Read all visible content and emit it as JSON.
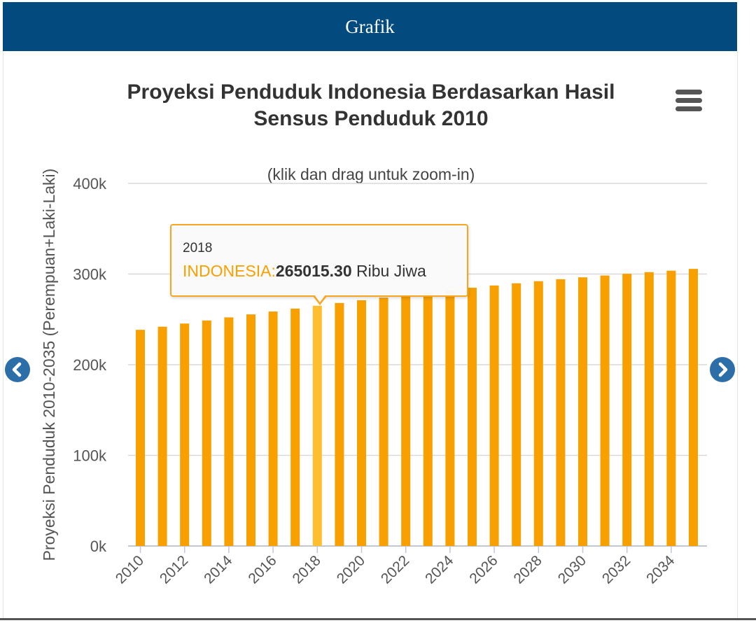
{
  "panel": {
    "header_title": "Grafik"
  },
  "chart_data": {
    "type": "bar",
    "title": "Proyeksi Penduduk Indonesia Berdasarkan Hasil Sensus Penduduk 2010",
    "subtitle": "(klik dan drag untuk zoom-in)",
    "ylabel": "Proyeksi Penduduk 2010-2035 (Perempuan+Laki-Laki)",
    "xlabel": "",
    "ylim": [
      0,
      400000
    ],
    "yticks": [
      0,
      100000,
      200000,
      300000,
      400000
    ],
    "ytick_labels": [
      "0k",
      "100k",
      "200k",
      "300k",
      "400k"
    ],
    "xtick_labels": [
      "2010",
      "2012",
      "2014",
      "2016",
      "2018",
      "2020",
      "2022",
      "2024",
      "2026",
      "2028",
      "2030",
      "2032",
      "2034"
    ],
    "grid": true,
    "categories": [
      2010,
      2011,
      2012,
      2013,
      2014,
      2015,
      2016,
      2017,
      2018,
      2019,
      2020,
      2021,
      2022,
      2023,
      2024,
      2025,
      2026,
      2027,
      2028,
      2029,
      2030,
      2031,
      2032,
      2033,
      2034,
      2035
    ],
    "series": [
      {
        "name": "INDONESIA",
        "color": "#f7a000",
        "values": [
          238500,
          241900,
          245400,
          248800,
          252200,
          255500,
          258700,
          261900,
          265015.3,
          268100,
          271100,
          274000,
          276900,
          279600,
          282300,
          284900,
          287400,
          289800,
          292100,
          294300,
          296400,
          298400,
          300300,
          302100,
          303700,
          305700
        ]
      }
    ],
    "highlight_color": "#ffbe2e",
    "tooltip": {
      "year": "2018",
      "series_label": "INDONESIA:",
      "value": "265015.30",
      "unit": "Ribu Jiwa",
      "category_index": 8
    }
  },
  "icons": {
    "menu": "hamburger-menu-icon",
    "prev": "chevron-left-icon",
    "next": "chevron-right-icon"
  }
}
